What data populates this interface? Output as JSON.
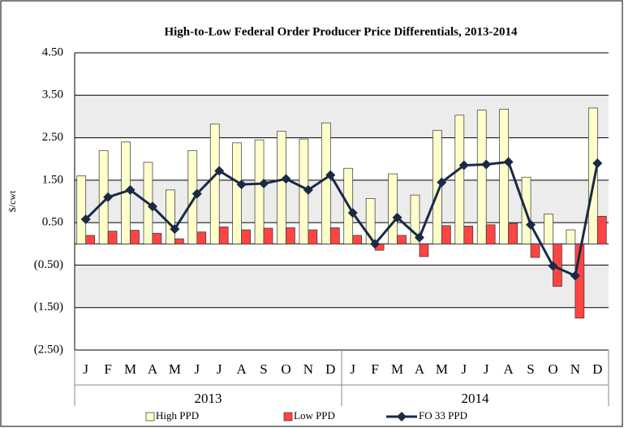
{
  "chart_data": {
    "type": "bar-line",
    "title": "High-to-Low Federal Order Producer Price Differentials, 2013-2014",
    "y_label": "$/cwt",
    "categories": [
      "J",
      "F",
      "M",
      "A",
      "M",
      "J",
      "J",
      "A",
      "S",
      "O",
      "N",
      "D",
      "J",
      "F",
      "M",
      "A",
      "M",
      "J",
      "J",
      "A",
      "S",
      "O",
      "N",
      "D"
    ],
    "x_groups": [
      "2013",
      "2014"
    ],
    "series": [
      {
        "name": "High PPD",
        "kind": "bar",
        "color": "#ffffcc",
        "values": [
          1.6,
          2.2,
          2.4,
          1.92,
          1.27,
          2.2,
          2.82,
          2.38,
          2.45,
          2.65,
          2.47,
          2.85,
          1.78,
          1.07,
          1.65,
          1.15,
          2.67,
          3.03,
          3.15,
          3.17,
          1.57,
          0.7,
          0.33,
          3.2
        ]
      },
      {
        "name": "Low PPD",
        "kind": "bar",
        "color": "#ff4444",
        "values": [
          0.2,
          0.3,
          0.32,
          0.25,
          0.12,
          0.28,
          0.4,
          0.33,
          0.37,
          0.38,
          0.33,
          0.38,
          0.2,
          -0.15,
          0.2,
          -0.3,
          0.43,
          0.42,
          0.45,
          0.48,
          -0.32,
          -1.0,
          -1.75,
          0.65
        ]
      },
      {
        "name": "FO 33 PPD",
        "kind": "line",
        "color": "#1a2a44",
        "values": [
          0.58,
          1.1,
          1.27,
          0.88,
          0.35,
          1.18,
          1.72,
          1.4,
          1.42,
          1.53,
          1.27,
          1.62,
          0.73,
          0.0,
          0.62,
          0.15,
          1.45,
          1.85,
          1.87,
          1.93,
          0.45,
          -0.52,
          -0.75,
          1.9
        ]
      }
    ],
    "ylim": [
      -2.5,
      4.5
    ],
    "yticks": [
      {
        "value": 4.5,
        "label": "4.50"
      },
      {
        "value": 3.5,
        "label": "3.50"
      },
      {
        "value": 2.5,
        "label": "2.50"
      },
      {
        "value": 1.5,
        "label": "1.50"
      },
      {
        "value": 0.5,
        "label": "0.50"
      },
      {
        "value": -0.5,
        "label": "(0.50)"
      },
      {
        "value": -1.5,
        "label": "(1.50)"
      },
      {
        "value": -2.5,
        "label": "(2.50)"
      }
    ],
    "grid": true,
    "legend": "bottom"
  }
}
